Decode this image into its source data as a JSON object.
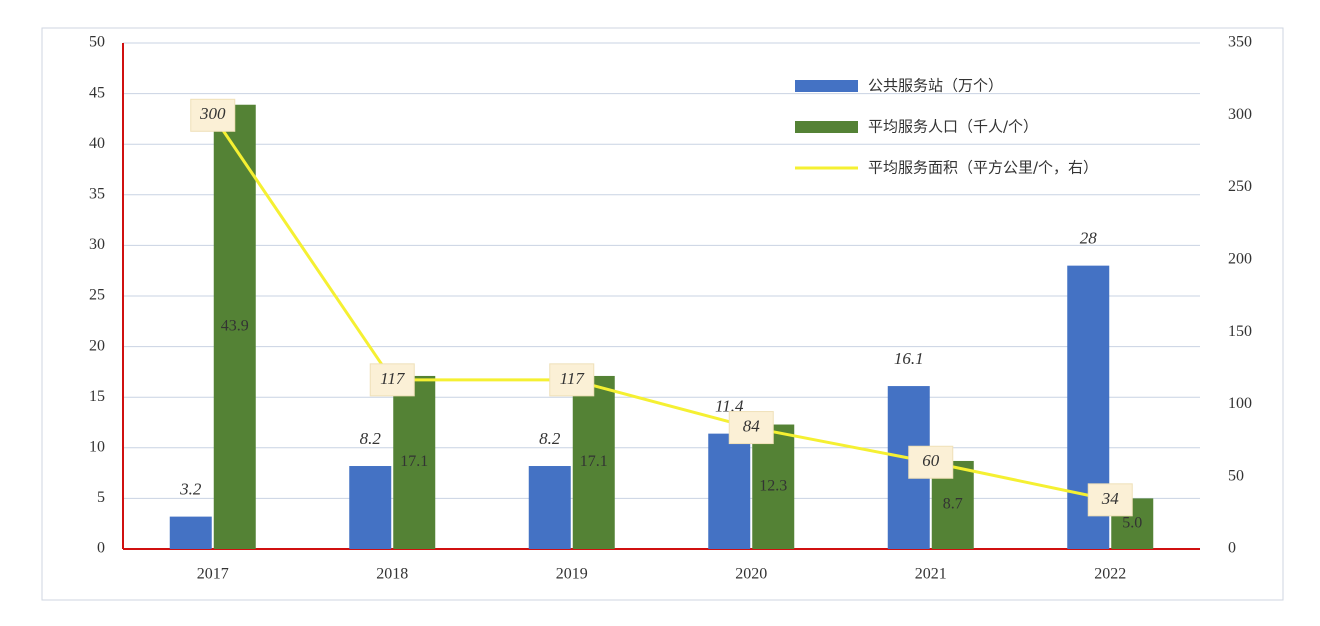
{
  "chart_data": {
    "type": "bar_line",
    "categories": [
      "2017",
      "2018",
      "2019",
      "2020",
      "2021",
      "2022"
    ],
    "series": [
      {
        "name": "公共服务站（万个）",
        "color": "#4472c4",
        "values": [
          3.2,
          8.2,
          8.2,
          11.4,
          16.1,
          28
        ]
      },
      {
        "name": "平均服务人口（千人/个）",
        "color": "#548235",
        "values": [
          43.9,
          17.1,
          17.1,
          12.3,
          8.7,
          5.0
        ],
        "value_labels": [
          "43.9",
          "17.1",
          "17.1",
          "12.3",
          "8.7",
          "5.0"
        ]
      },
      {
        "name": "平均服务面积（平方公里/个，右）",
        "color": "#f5f032",
        "type": "line",
        "axis": "y2",
        "values": [
          300,
          117,
          117,
          84,
          60,
          34
        ]
      }
    ],
    "ylim": [
      0,
      50
    ],
    "yticks": [
      0,
      5,
      10,
      15,
      20,
      25,
      30,
      35,
      40,
      45,
      50
    ],
    "y2lim": [
      0,
      350
    ],
    "y2ticks": [
      0,
      50,
      100,
      150,
      200,
      250,
      300,
      350
    ],
    "grid": true,
    "legend": "top-right"
  }
}
